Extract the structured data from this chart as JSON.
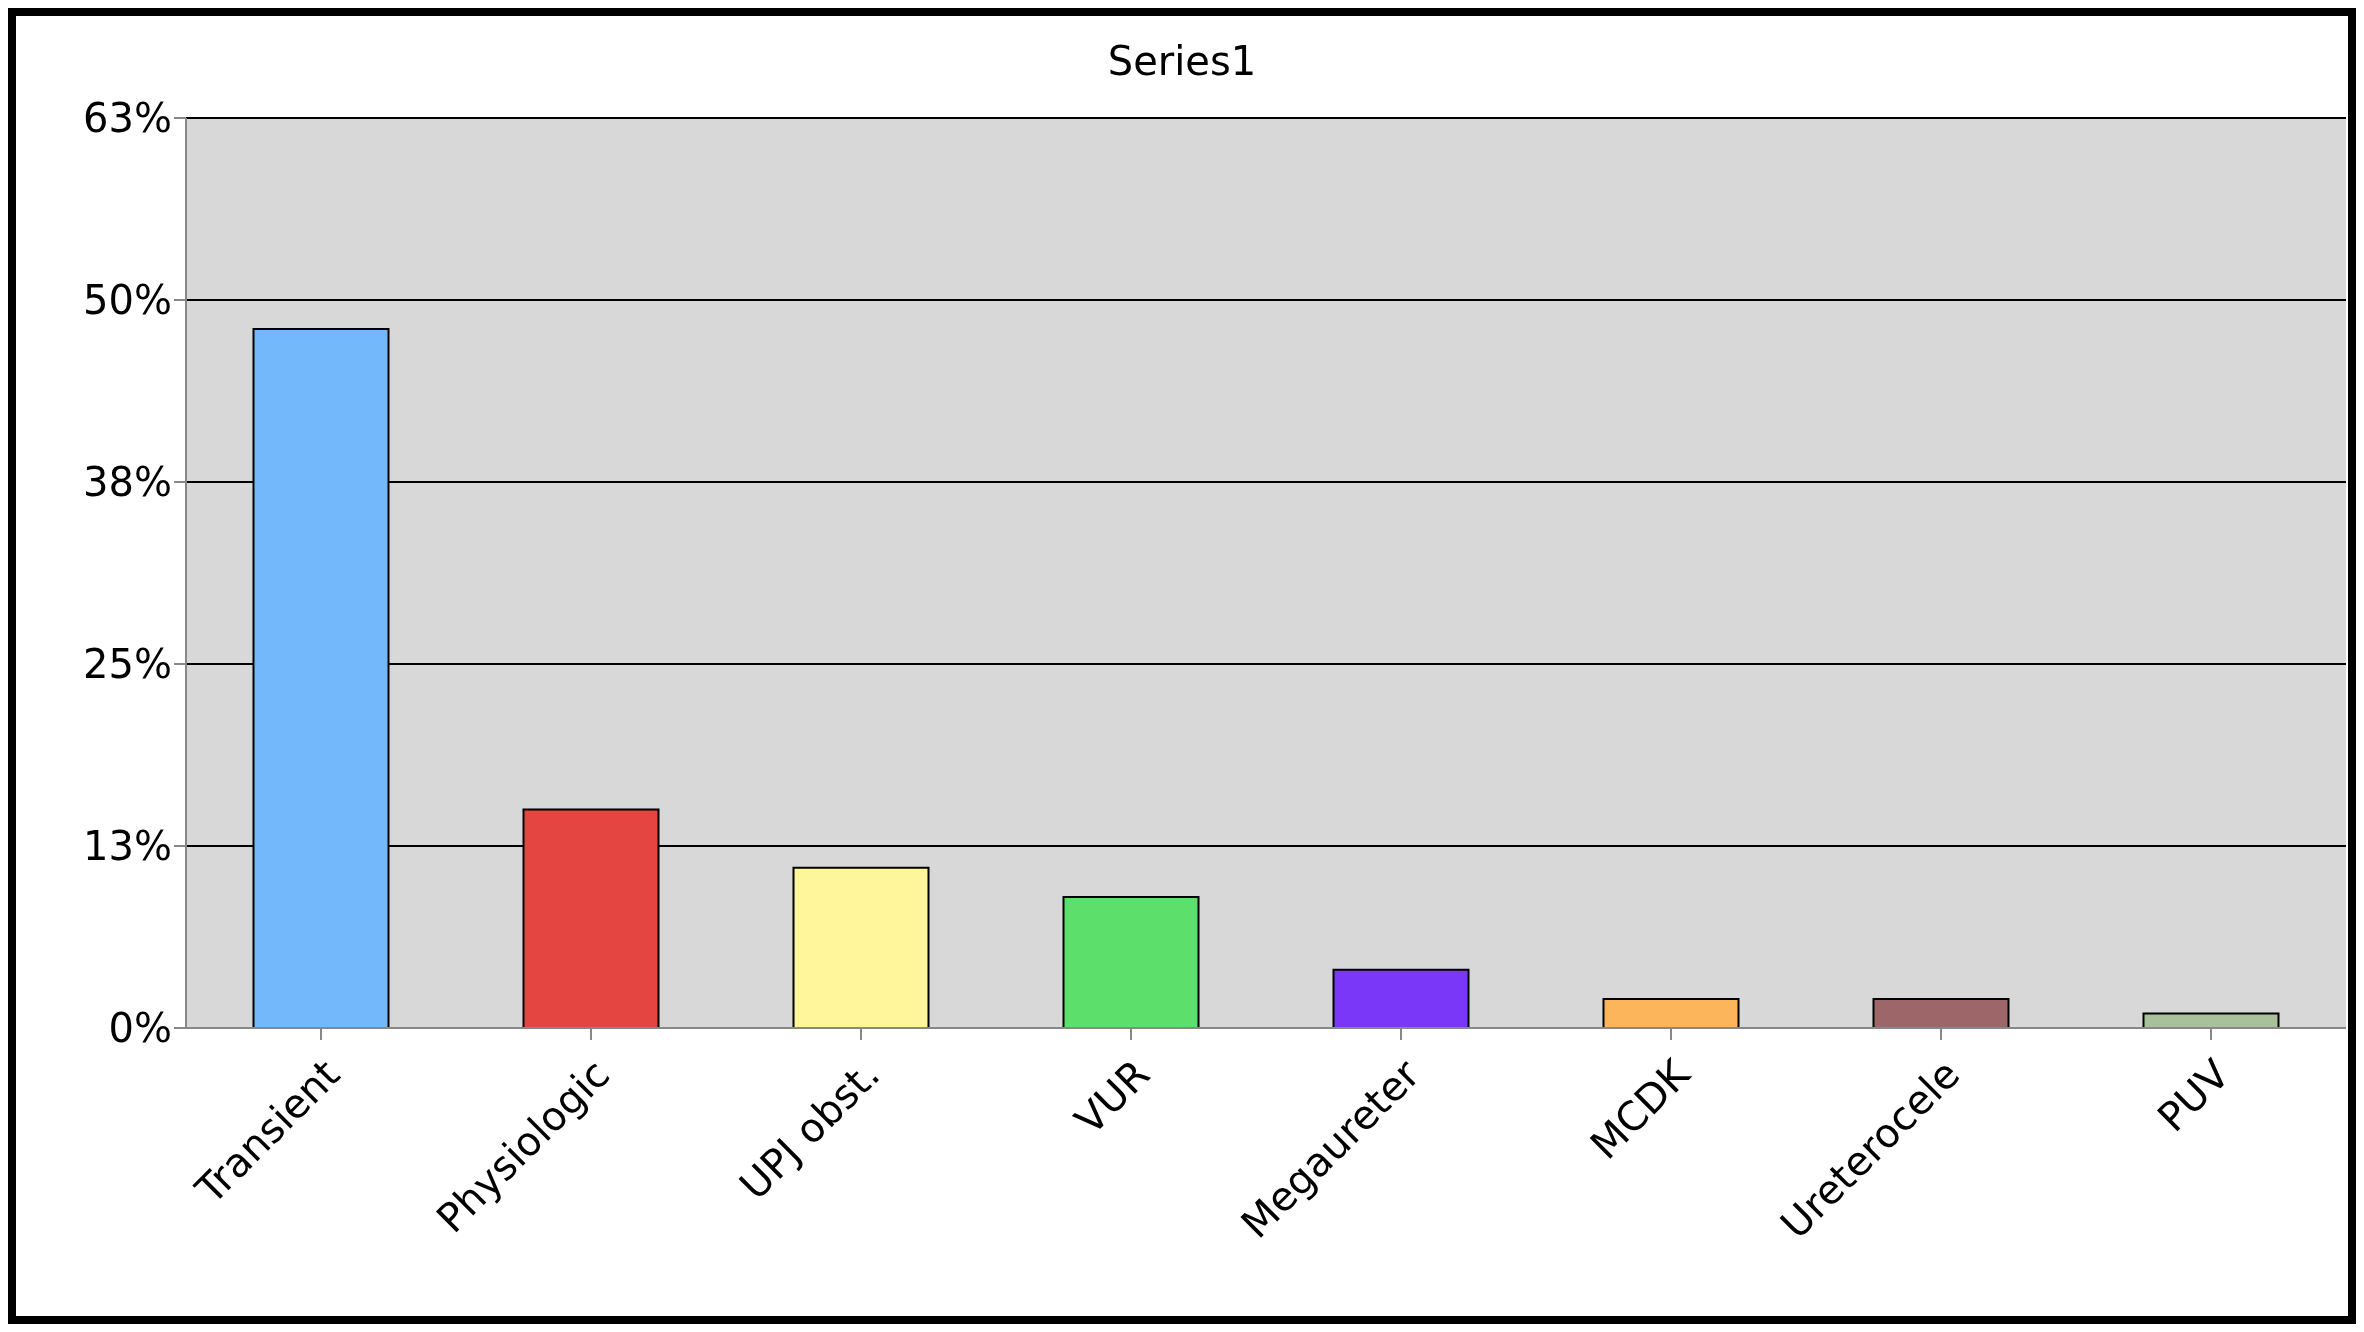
{
  "chart_data": {
    "type": "bar",
    "title": "Series1",
    "categories": [
      "Transient",
      "Physiologic",
      "UPJ obst.",
      "VUR",
      "Megaureter",
      "MCDK",
      "Ureterocele",
      "PUV"
    ],
    "values": [
      48,
      15,
      11,
      9,
      4,
      2,
      2,
      1
    ],
    "colors": [
      "#74b8fc",
      "#e54541",
      "#fff59b",
      "#5ce06b",
      "#7b37f7",
      "#fdb55b",
      "#9d6669",
      "#a9c19a"
    ],
    "ylim": [
      0,
      62.5
    ],
    "yticks": [
      {
        "value": 0,
        "label": "0%"
      },
      {
        "value": 12.5,
        "label": "13%"
      },
      {
        "value": 25,
        "label": "25%"
      },
      {
        "value": 37.5,
        "label": "38%"
      },
      {
        "value": 50,
        "label": "50%"
      },
      {
        "value": 62.5,
        "label": "63%"
      }
    ],
    "grid": "y",
    "legend": false
  }
}
